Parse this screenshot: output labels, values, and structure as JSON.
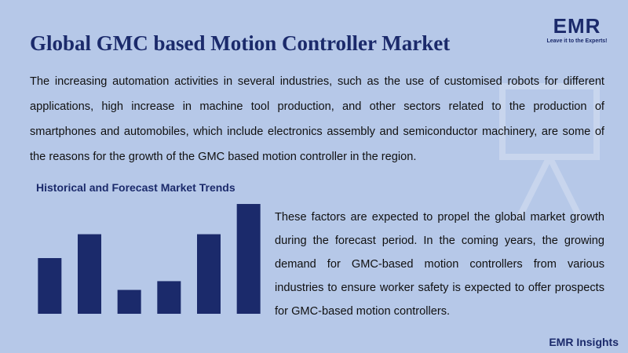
{
  "header": {
    "title": "Global GMC based Motion Controller Market",
    "logo": {
      "name": "EMR",
      "tagline": "Leave it to the Experts!"
    }
  },
  "intro": "The increasing automation activities in several industries, such as the use of customised robots for different applications, high increase in machine tool production, and other sectors related to the production of smartphones and automobiles, which include electronics assembly and semiconductor machinery, are some of the reasons for the growth of the GMC based motion controller in the region.",
  "chart_data": {
    "type": "bar",
    "title": "Historical and Forecast Market Trends",
    "categories": [
      null,
      null,
      null,
      null,
      null,
      null
    ],
    "values": [
      70,
      100,
      30,
      41,
      100,
      138
    ],
    "color": "#1b2a6b",
    "ylim": [
      0,
      140
    ]
  },
  "side_text": "These factors are expected to propel the global market growth during the forecast period. In the coming years, the growing demand for GMC-based motion controllers from various industries to ensure worker safety is expected to offer prospects for GMC-based motion controllers.",
  "footer": "EMR Insights"
}
